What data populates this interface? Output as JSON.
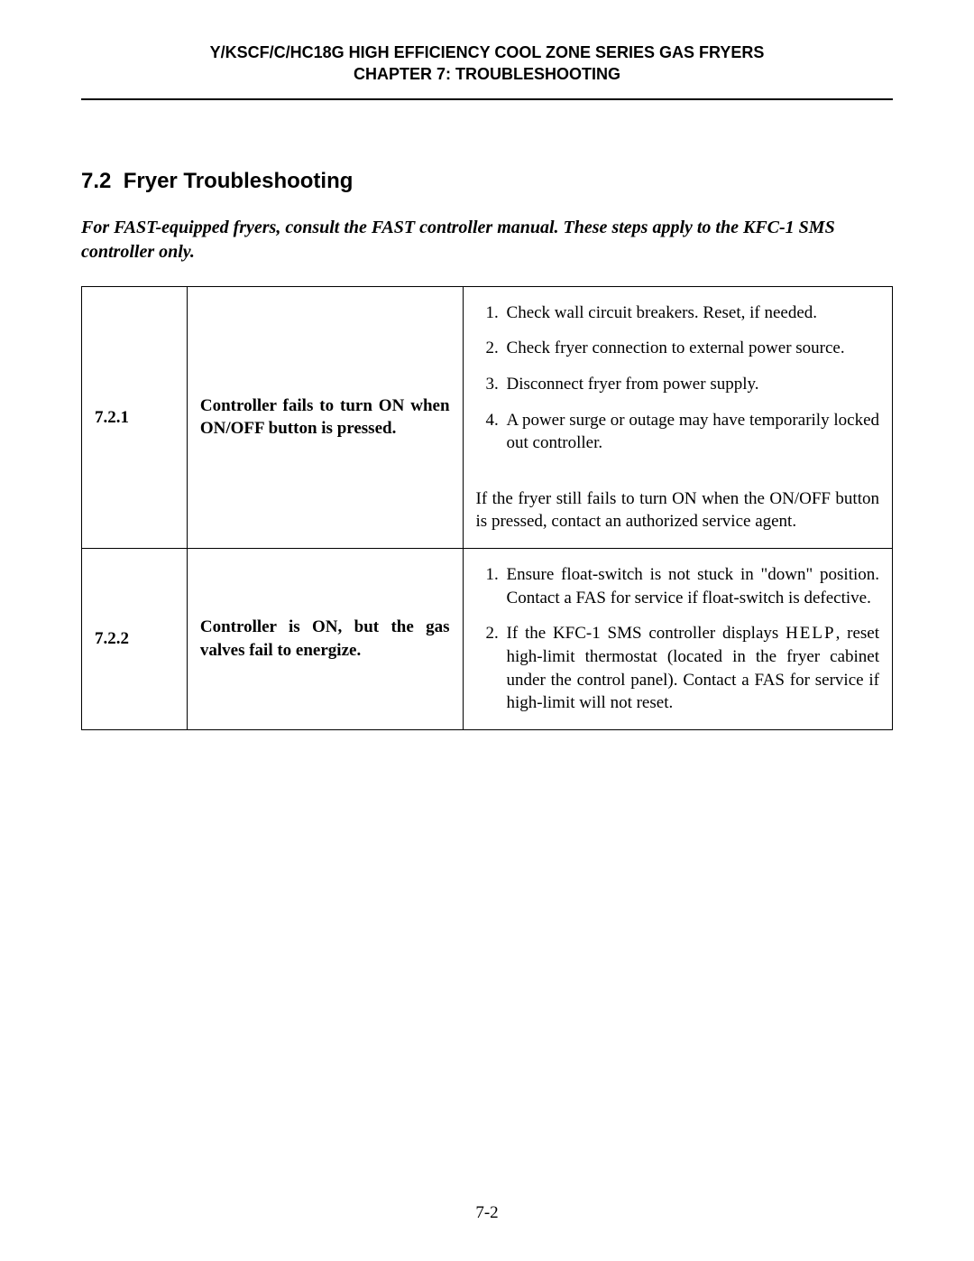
{
  "header": {
    "line1": "Y/KSCF/C/HC18G HIGH EFFICIENCY COOL ZONE SERIES GAS FRYERS",
    "line2": "CHAPTER 7:  TROUBLESHOOTING"
  },
  "section": {
    "number": "7.2",
    "title": "Fryer Troubleshooting"
  },
  "intro": "For FAST-equipped fryers, consult the FAST controller manual. These steps apply to the KFC-1 SMS controller only.",
  "rows": [
    {
      "num": "7.2.1",
      "problem": "Controller fails to turn ON when ON/OFF button is pressed.",
      "steps": [
        "Check wall circuit breakers.  Reset, if needed.",
        "Check fryer connection to external power source.",
        "Disconnect fryer from power supply.",
        "A power surge or outage may have temporarily locked out controller."
      ],
      "after": "If the fryer still fails to turn ON when the ON/OFF button is pressed, contact an authorized service agent."
    },
    {
      "num": "7.2.2",
      "problem": "Controller is ON, but the gas valves fail to energize.",
      "steps": [
        "Ensure float-switch is not stuck in \"down\" position.  Contact a FAS for service if float-switch is defective.",
        "If the KFC-1 SMS controller displays HELP, reset high-limit thermostat (located in the fryer cabinet under the control panel).  Contact a FAS for service if high-limit will not reset."
      ]
    }
  ],
  "pagenum": "7-2",
  "style": {
    "background": "#ffffff",
    "text": "#000000",
    "rule": "#000000"
  }
}
